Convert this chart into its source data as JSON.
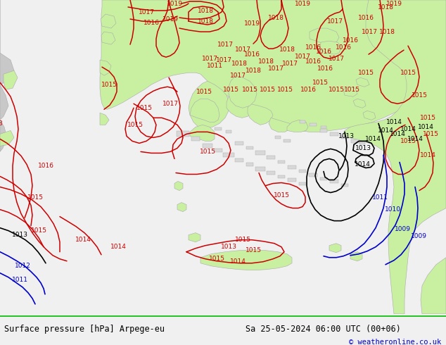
{
  "title_left": "Surface pressure [hPa] Arpege-eu",
  "title_right": "Sa 25-05-2024 06:00 UTC (00+06)",
  "copyright": "© weatheronline.co.uk",
  "land_color": "#c8f0a0",
  "sea_color": "#d8d8d8",
  "coast_color": "#aaaaaa",
  "footer_bg": "#f0f0f0",
  "footer_border": "#00bb00",
  "red_color": "#cc0000",
  "black_color": "#000000",
  "blue_color": "#0000cc",
  "label_fontsize": 6.5,
  "footer_fontsize": 8.5,
  "copyright_fontsize": 7.5
}
